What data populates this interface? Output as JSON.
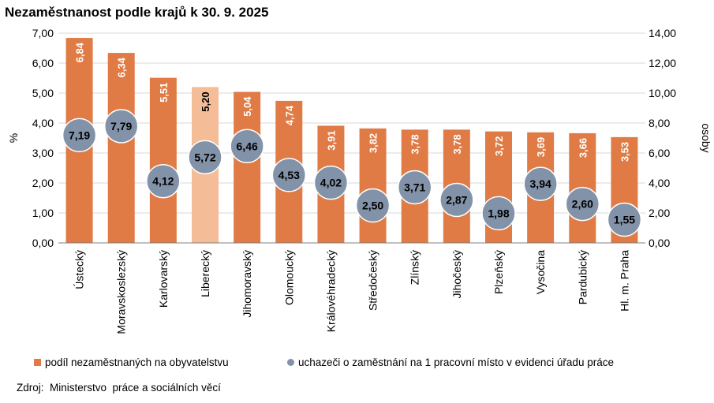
{
  "chart_data": {
    "type": "bar",
    "title": "Nezaměstnanost podle krajů k 30. 9. 2025",
    "categories": [
      "Ústecký",
      "Moravskoslezský",
      "Karlovarský",
      "Liberecký",
      "Jihomoravský",
      "Olomoucký",
      "Královéhradecký",
      "Středočeský",
      "Zlínský",
      "Jihočeský",
      "Plzeňský",
      "Vysočina",
      "Pardubický",
      "Hl. m. Praha"
    ],
    "series": [
      {
        "name": "podíl nezaměstnaných na obyvatelstvu",
        "type": "bar",
        "axis": "left",
        "values": [
          6.84,
          6.34,
          5.51,
          5.2,
          5.04,
          4.74,
          3.91,
          3.82,
          3.78,
          3.78,
          3.72,
          3.69,
          3.66,
          3.53
        ],
        "labels": [
          "6,84",
          "6,34",
          "5,51",
          "5,20",
          "5,04",
          "4,74",
          "3,91",
          "3,82",
          "3,78",
          "3,78",
          "3,72",
          "3,69",
          "3,66",
          "3,53"
        ],
        "highlight_index": 3
      },
      {
        "name": "uchazeči o zaměstnání na 1 pracovní místo v evidenci úřadu práce",
        "type": "scatter",
        "axis": "right",
        "values": [
          7.19,
          7.79,
          4.12,
          5.72,
          6.46,
          4.53,
          4.02,
          2.5,
          3.71,
          2.87,
          1.98,
          3.94,
          2.6,
          1.55
        ],
        "labels": [
          "7,19",
          "7,79",
          "4,12",
          "5,72",
          "6,46",
          "4,53",
          "4,02",
          "2,50",
          "3,71",
          "2,87",
          "1,98",
          "3,94",
          "2,60",
          "1,55"
        ]
      }
    ],
    "y_left": {
      "label": "%",
      "ylim": [
        0,
        7
      ],
      "ticks": [
        "0,00",
        "1,00",
        "2,00",
        "3,00",
        "4,00",
        "5,00",
        "6,00",
        "7,00"
      ]
    },
    "y_right": {
      "label": "osoby",
      "ylim": [
        0,
        14
      ],
      "ticks": [
        "0,00",
        "2,00",
        "4,00",
        "6,00",
        "8,00",
        "10,00",
        "12,00",
        "14,00"
      ]
    },
    "grid": true,
    "legend_position": "bottom",
    "colors": {
      "bar": "#e07b45",
      "bar_highlight": "#f4bc97",
      "dot": "#8292a8",
      "dot_border": "#ffffff",
      "grid": "#d9d9d9"
    }
  },
  "source": "Zdroj:  Ministerstvo  práce a sociálních věcí"
}
